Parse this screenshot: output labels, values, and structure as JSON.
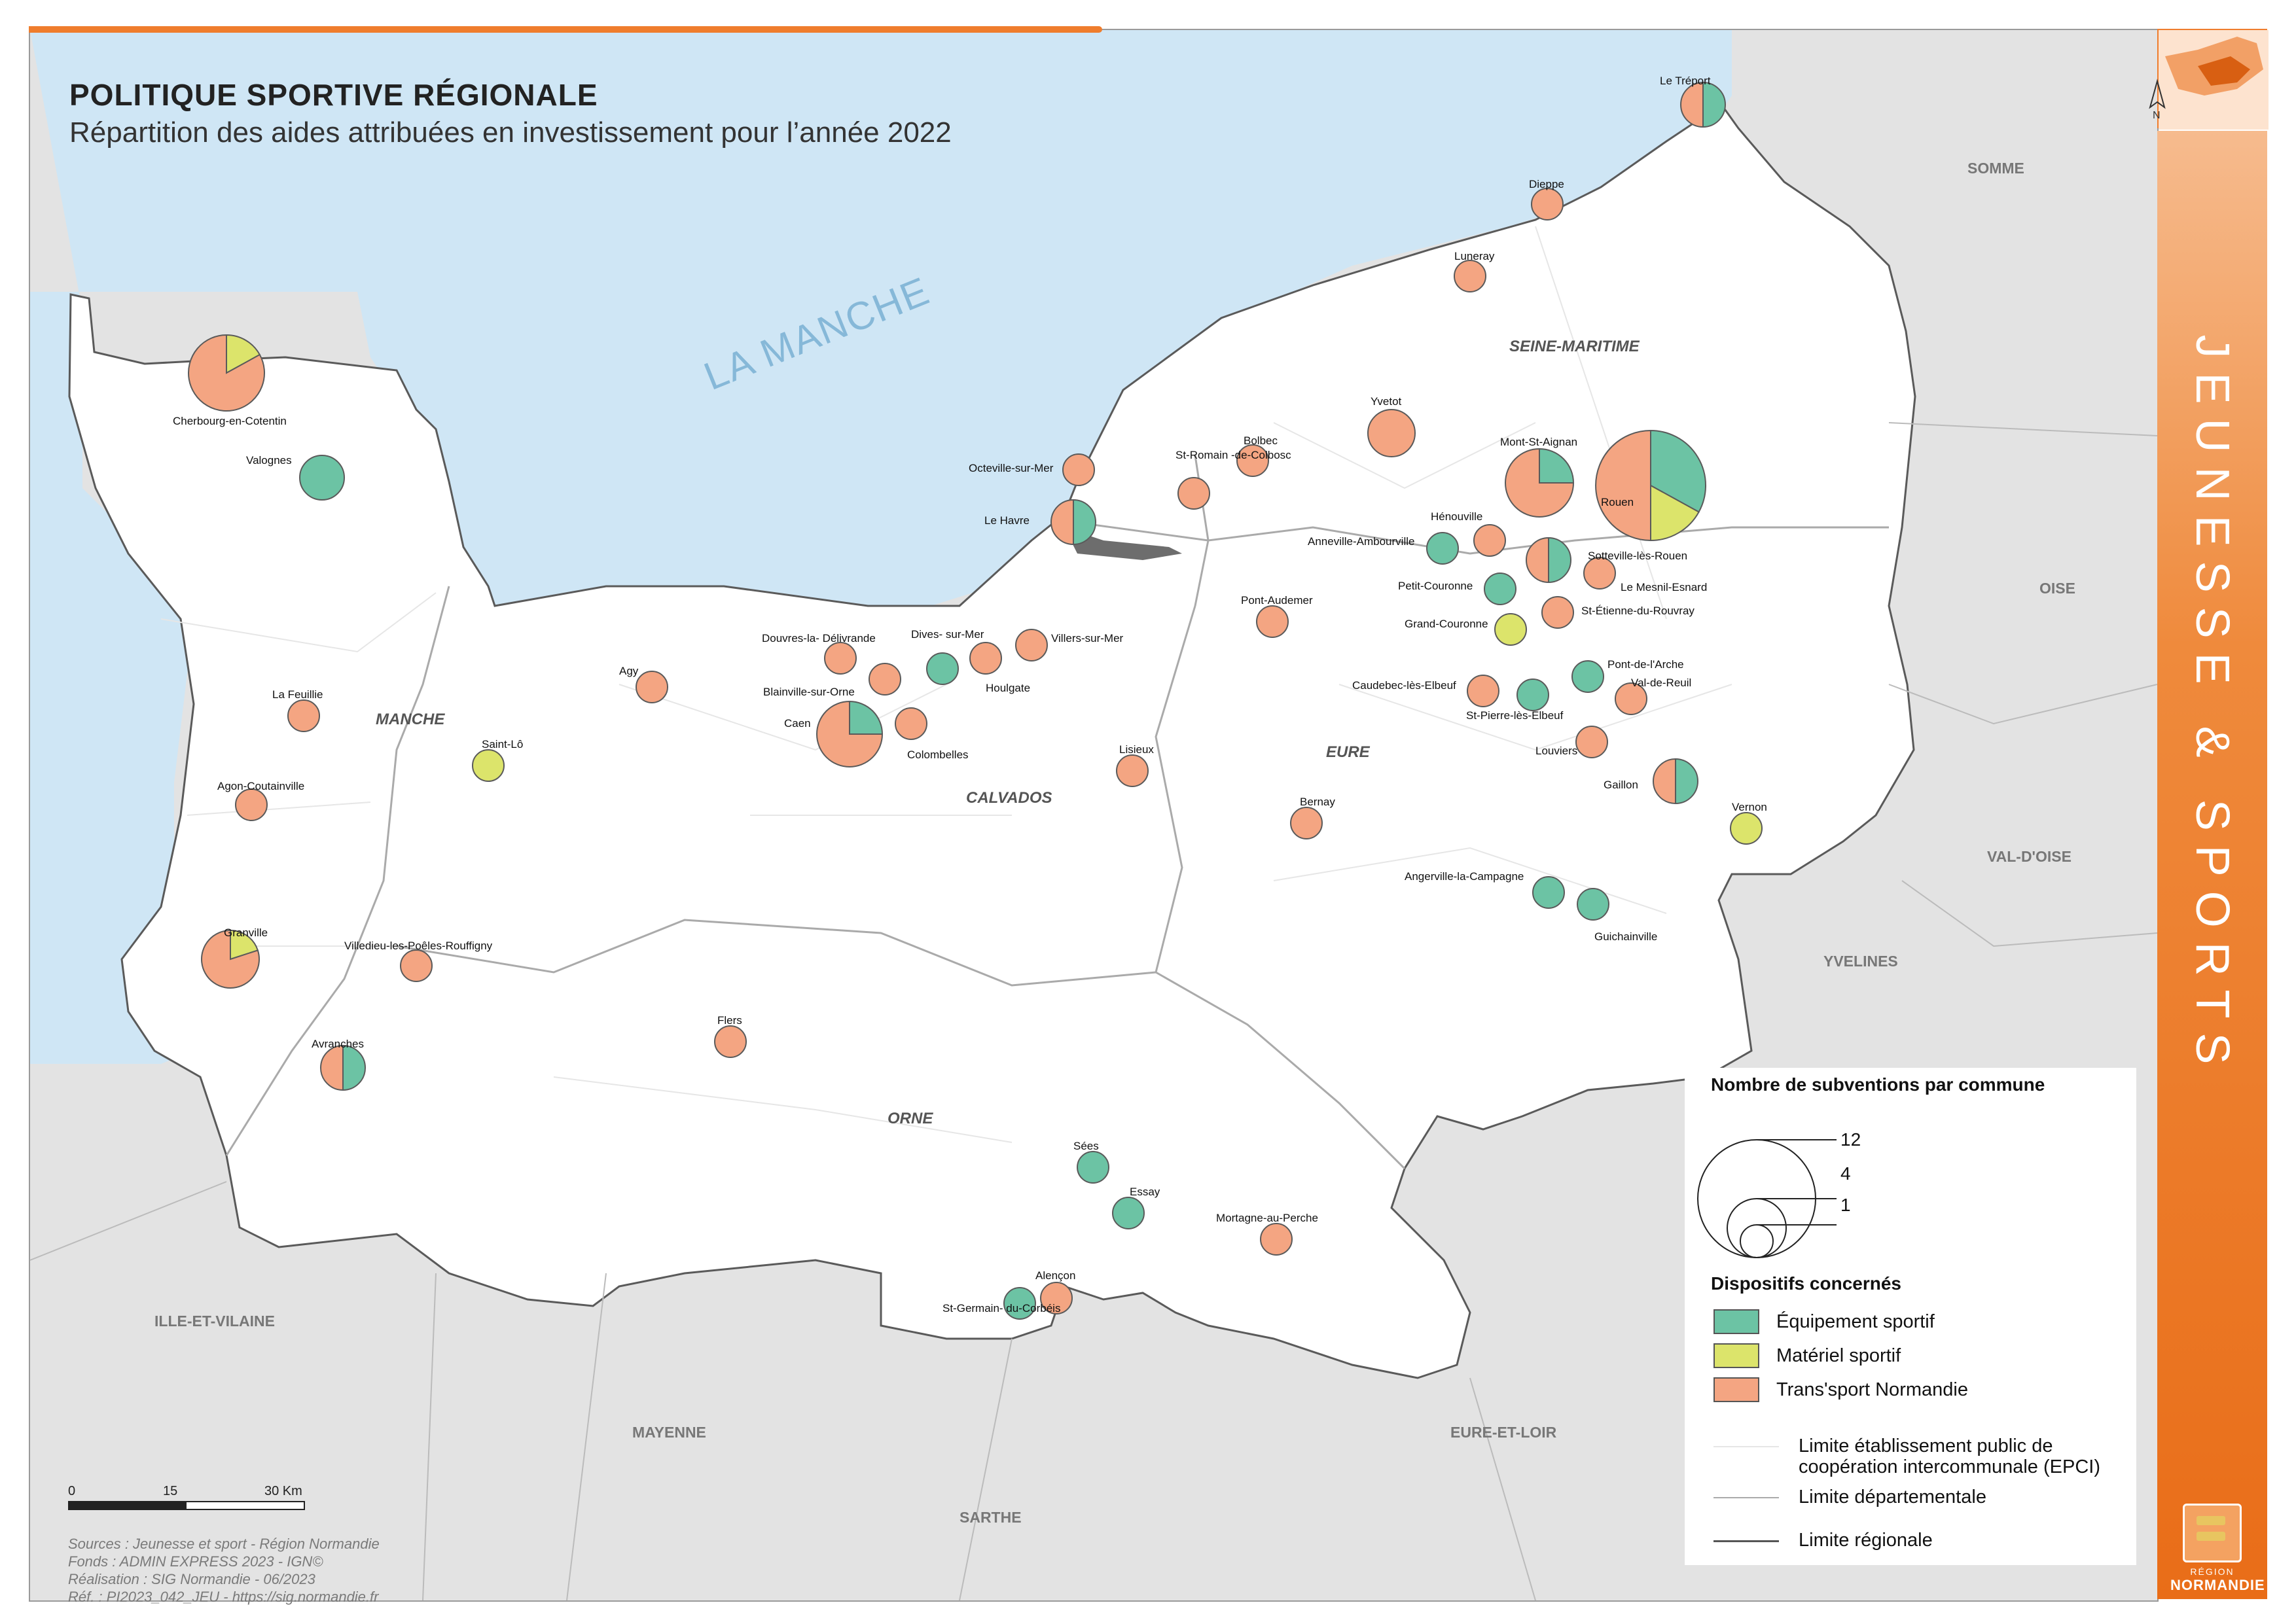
{
  "title": {
    "main": "POLITIQUE SPORTIVE RÉGIONALE",
    "subtitle": "Répartition des aides attribuées en investissement pour l’année 2022"
  },
  "side_banner": "JEUNESSE & SPORTS",
  "sea_label": "LA MANCHE",
  "north_label": "N",
  "departments": [
    "MANCHE",
    "CALVADOS",
    "ORNE",
    "EURE",
    "SEINE-MARITIME"
  ],
  "neighbours": [
    "SOMME",
    "OISE",
    "VAL-D'OISE",
    "YVELINES",
    "EURE-ET-LOIR",
    "SARTHE",
    "MAYENNE",
    "ILLE-ET-VILAINE"
  ],
  "colors": {
    "equipement": "#6cc3a4",
    "materiel": "#dce46b",
    "transport": "#f4a582",
    "sea": "#cfe6f5",
    "land": "#ffffff",
    "outside": "#e3e3e3",
    "accent": "#ef7d2d"
  },
  "communes": [
    {
      "name": "Le Tréport",
      "slices": {
        "equipement": 0.5,
        "transport": 0.5
      }
    },
    {
      "name": "Dieppe",
      "slices": {
        "transport": 1
      }
    },
    {
      "name": "Luneray",
      "slices": {
        "transport": 1
      }
    },
    {
      "name": "Yvetot",
      "slices": {
        "transport": 1
      }
    },
    {
      "name": "Bolbec",
      "slices": {
        "transport": 1
      }
    },
    {
      "name": "St-Romain -de-Colbosc",
      "slices": {
        "transport": 1
      }
    },
    {
      "name": "Octeville-sur-Mer",
      "slices": {
        "transport": 1
      }
    },
    {
      "name": "Le Havre",
      "slices": {
        "equipement": 0.5,
        "transport": 0.5
      }
    },
    {
      "name": "Mont-St-Aignan",
      "slices": {
        "equipement": 0.25,
        "transport": 0.75
      }
    },
    {
      "name": "Rouen",
      "slices": {
        "equipement": 0.33,
        "materiel": 0.17,
        "transport": 0.5
      }
    },
    {
      "name": "Hénouville",
      "slices": {
        "transport": 1
      }
    },
    {
      "name": "Anneville-Ambourville",
      "slices": {
        "equipement": 1
      }
    },
    {
      "name": "Sotteville-lès-Rouen",
      "slices": {
        "equipement": 0.5,
        "transport": 0.5
      }
    },
    {
      "name": "Le Mesnil-Esnard",
      "slices": {
        "transport": 1
      }
    },
    {
      "name": "Petit-Couronne",
      "slices": {
        "equipement": 1
      }
    },
    {
      "name": "St-Étienne-du-Rouvray",
      "slices": {
        "transport": 1
      }
    },
    {
      "name": "Grand-Couronne",
      "slices": {
        "materiel": 1
      }
    },
    {
      "name": "Pont-Audemer",
      "slices": {
        "transport": 1
      }
    },
    {
      "name": "Pont-de-l'Arche",
      "slices": {
        "equipement": 1
      }
    },
    {
      "name": "Caudebec-lès-Elbeuf",
      "slices": {
        "transport": 1
      }
    },
    {
      "name": "St-Pierre-lès-Elbeuf",
      "slices": {
        "equipement": 1
      }
    },
    {
      "name": "Val-de-Reuil",
      "slices": {
        "transport": 1
      }
    },
    {
      "name": "Louviers",
      "slices": {
        "transport": 1
      }
    },
    {
      "name": "Gaillon",
      "slices": {
        "equipement": 0.5,
        "transport": 0.5
      }
    },
    {
      "name": "Vernon",
      "slices": {
        "materiel": 1
      }
    },
    {
      "name": "Bernay",
      "slices": {
        "transport": 1
      }
    },
    {
      "name": "Angerville-la-Campagne",
      "slices": {
        "equipement": 1
      }
    },
    {
      "name": "Guichainville",
      "slices": {
        "equipement": 1
      }
    },
    {
      "name": "Lisieux",
      "slices": {
        "transport": 1
      }
    },
    {
      "name": "Villers-sur-Mer",
      "slices": {
        "transport": 1
      }
    },
    {
      "name": "Houlgate",
      "slices": {
        "transport": 1
      }
    },
    {
      "name": "Dives- sur-Mer",
      "slices": {
        "equipement": 1
      }
    },
    {
      "name": "Douvres-la- Délivrande",
      "slices": {
        "transport": 1
      }
    },
    {
      "name": "Blainville-sur-Orne",
      "slices": {
        "transport": 1
      }
    },
    {
      "name": "Caen",
      "slices": {
        "equipement": 0.25,
        "transport": 0.75
      }
    },
    {
      "name": "Colombelles",
      "slices": {
        "transport": 1
      }
    },
    {
      "name": "Agy",
      "slices": {
        "transport": 1
      }
    },
    {
      "name": "Cherbourg-en-Cotentin",
      "slices": {
        "materiel": 0.17,
        "transport": 0.83
      }
    },
    {
      "name": "Valognes",
      "slices": {
        "equipement": 1
      }
    },
    {
      "name": "La Feuillie",
      "slices": {
        "transport": 1
      }
    },
    {
      "name": "Saint-Lô",
      "slices": {
        "materiel": 1
      }
    },
    {
      "name": "Agon-Coutainville",
      "slices": {
        "transport": 1
      }
    },
    {
      "name": "Granville",
      "slices": {
        "materiel": 0.2,
        "transport": 0.8
      }
    },
    {
      "name": "Villedieu-les-Poêles-Rouffigny",
      "slices": {
        "transport": 1
      }
    },
    {
      "name": "Avranches",
      "slices": {
        "equipement": 0.5,
        "transport": 0.5
      }
    },
    {
      "name": "Flers",
      "slices": {
        "transport": 1
      }
    },
    {
      "name": "Sées",
      "slices": {
        "equipement": 1
      }
    },
    {
      "name": "Essay",
      "slices": {
        "equipement": 1
      }
    },
    {
      "name": "Mortagne-au-Perche",
      "slices": {
        "transport": 1
      }
    },
    {
      "name": "Alençon",
      "slices": {
        "transport": 1
      }
    },
    {
      "name": "St-Germain- du-Corbéis",
      "slices": {
        "equipement": 1
      }
    }
  ],
  "legend": {
    "size_title": "Nombre de subventions par commune",
    "size_values": [
      "12",
      "4",
      "1"
    ],
    "dispositif_title": "Dispositifs concernés",
    "items": [
      {
        "label": "Équipement sportif",
        "key": "equipement"
      },
      {
        "label": "Matériel sportif",
        "key": "materiel"
      },
      {
        "label": "Trans'sport Normandie",
        "key": "transport"
      }
    ],
    "lines": [
      {
        "label": "Limite établissement public de coopération intercommunale (EPCI)"
      },
      {
        "label": "Limite départementale"
      },
      {
        "label": "Limite régionale"
      }
    ]
  },
  "scale": {
    "labels": [
      "0",
      "15",
      "30 Km"
    ]
  },
  "sources": [
    "Sources : Jeunesse et sport - Région Normandie",
    "Fonds : ADMIN EXPRESS 2023 - IGN©",
    "Réalisation : SIG Normandie - 06/2023",
    "Réf. : PI2023_042_JEU - https://sig.normandie.fr"
  ],
  "logo": {
    "line1": "RÉGION",
    "line2": "NORMANDIE"
  }
}
